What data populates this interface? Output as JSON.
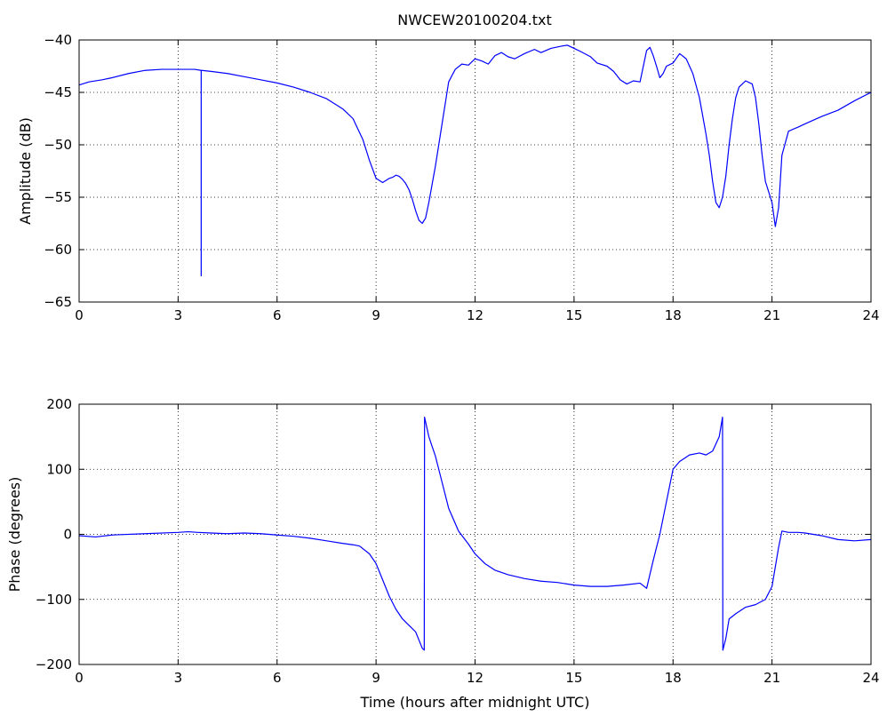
{
  "figure_title": "NWCEW20100204.txt",
  "colors": {
    "series": "#0000ff",
    "axes": "#000000",
    "background": "#ffffff"
  },
  "chart_data": [
    {
      "type": "line",
      "title": "NWCEW20100204.txt",
      "xlabel": "",
      "ylabel": "Amplitude (dB)",
      "xlim": [
        0,
        24
      ],
      "ylim": [
        -65,
        -40
      ],
      "xticks": [
        0,
        3,
        6,
        9,
        12,
        15,
        18,
        21,
        24
      ],
      "yticks": [
        -65,
        -60,
        -55,
        -50,
        -45,
        -40
      ],
      "grid": true,
      "series": [
        {
          "color": "#0000ff",
          "x": [
            0,
            0.3,
            0.7,
            1.0,
            1.5,
            2.0,
            2.5,
            3.0,
            3.5,
            3.7,
            3.7,
            3.7,
            3.72,
            4.0,
            4.5,
            5.0,
            5.5,
            6.0,
            6.5,
            7.0,
            7.5,
            8.0,
            8.3,
            8.6,
            8.8,
            9.0,
            9.2,
            9.3,
            9.4,
            9.5,
            9.6,
            9.7,
            9.8,
            9.9,
            10.0,
            10.1,
            10.2,
            10.3,
            10.4,
            10.5,
            10.6,
            10.8,
            11.0,
            11.2,
            11.4,
            11.6,
            11.8,
            12.0,
            12.2,
            12.4,
            12.6,
            12.8,
            13.0,
            13.2,
            13.5,
            13.8,
            14.0,
            14.3,
            14.6,
            14.8,
            15.0,
            15.2,
            15.5,
            15.7,
            16.0,
            16.2,
            16.4,
            16.6,
            16.8,
            17.0,
            17.1,
            17.2,
            17.3,
            17.4,
            17.5,
            17.6,
            17.7,
            17.8,
            18.0,
            18.2,
            18.4,
            18.6,
            18.8,
            19.0,
            19.1,
            19.2,
            19.3,
            19.4,
            19.5,
            19.6,
            19.7,
            19.8,
            19.9,
            20.0,
            20.2,
            20.4,
            20.5,
            20.6,
            20.7,
            20.8,
            20.9,
            21.0,
            21.1,
            21.2,
            21.3,
            21.5,
            21.8,
            22.0,
            22.5,
            23.0,
            23.5,
            24.0
          ],
          "y": [
            -44.3,
            -44.0,
            -43.8,
            -43.6,
            -43.2,
            -42.9,
            -42.8,
            -42.8,
            -42.8,
            -42.9,
            -62.5,
            -42.9,
            -42.9,
            -43.0,
            -43.2,
            -43.5,
            -43.8,
            -44.1,
            -44.5,
            -45.0,
            -45.6,
            -46.6,
            -47.5,
            -49.5,
            -51.5,
            -53.2,
            -53.6,
            -53.4,
            -53.2,
            -53.1,
            -52.9,
            -53.0,
            -53.3,
            -53.7,
            -54.3,
            -55.2,
            -56.3,
            -57.2,
            -57.5,
            -57.0,
            -55.5,
            -52.0,
            -48.0,
            -44.0,
            -42.8,
            -42.3,
            -42.4,
            -41.8,
            -42.0,
            -42.3,
            -41.5,
            -41.2,
            -41.6,
            -41.8,
            -41.3,
            -40.9,
            -41.2,
            -40.8,
            -40.6,
            -40.5,
            -40.8,
            -41.1,
            -41.6,
            -42.2,
            -42.5,
            -43.0,
            -43.8,
            -44.2,
            -43.9,
            -44.0,
            -42.5,
            -41.0,
            -40.7,
            -41.5,
            -42.5,
            -43.6,
            -43.2,
            -42.5,
            -42.2,
            -41.3,
            -41.8,
            -43.2,
            -45.5,
            -49.0,
            -51.0,
            -53.5,
            -55.5,
            -56.0,
            -55.0,
            -53.0,
            -50.0,
            -47.5,
            -45.5,
            -44.5,
            -43.9,
            -44.2,
            -45.5,
            -48.0,
            -51.0,
            -53.5,
            -54.5,
            -55.5,
            -57.8,
            -56.0,
            -51.0,
            -48.7,
            -48.3,
            -48.0,
            -47.3,
            -46.7,
            -45.8,
            -45.0
          ]
        }
      ]
    },
    {
      "type": "line",
      "title": "",
      "xlabel": "Time (hours after midnight UTC)",
      "ylabel": "Phase (degrees)",
      "xlim": [
        0,
        24
      ],
      "ylim": [
        -200,
        200
      ],
      "xticks": [
        0,
        3,
        6,
        9,
        12,
        15,
        18,
        21,
        24
      ],
      "yticks": [
        -200,
        -100,
        0,
        100,
        200
      ],
      "grid": true,
      "series": [
        {
          "color": "#0000ff",
          "x": [
            0,
            0.5,
            1.0,
            2.0,
            3.0,
            3.3,
            3.6,
            4.0,
            4.5,
            5.0,
            5.5,
            6.0,
            6.5,
            7.0,
            7.5,
            8.0,
            8.3,
            8.5,
            8.8,
            9.0,
            9.2,
            9.4,
            9.6,
            9.8,
            10.0,
            10.2,
            10.4,
            10.46,
            10.47,
            10.6,
            10.8,
            11.0,
            11.2,
            11.5,
            11.8,
            12.0,
            12.3,
            12.6,
            13.0,
            13.5,
            14.0,
            14.5,
            15.0,
            15.5,
            16.0,
            16.5,
            17.0,
            17.2,
            17.4,
            17.6,
            17.8,
            18.0,
            18.2,
            18.5,
            18.8,
            19.0,
            19.2,
            19.4,
            19.5,
            19.51,
            19.6,
            19.7,
            19.9,
            20.2,
            20.5,
            20.8,
            21.0,
            21.2,
            21.3,
            21.5,
            21.8,
            22.0,
            22.5,
            23.0,
            23.5,
            24.0
          ],
          "y": [
            -2,
            -4,
            -1,
            1,
            3,
            4,
            3,
            2,
            1,
            2,
            1,
            -1,
            -3,
            -6,
            -10,
            -14,
            -16,
            -18,
            -30,
            -45,
            -70,
            -95,
            -115,
            -130,
            -140,
            -150,
            -175,
            -178,
            180,
            150,
            120,
            80,
            40,
            5,
            -15,
            -30,
            -45,
            -55,
            -62,
            -68,
            -72,
            -74,
            -78,
            -80,
            -80,
            -78,
            -75,
            -83,
            -40,
            0,
            50,
            100,
            112,
            122,
            125,
            122,
            128,
            150,
            180,
            -178,
            -160,
            -130,
            -122,
            -112,
            -108,
            -100,
            -80,
            -20,
            5,
            3,
            3,
            2,
            -2,
            -8,
            -10,
            -8
          ]
        }
      ]
    }
  ]
}
